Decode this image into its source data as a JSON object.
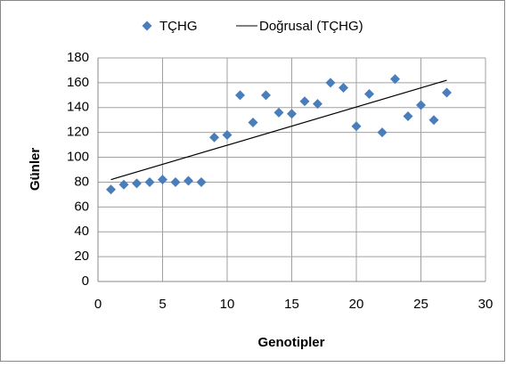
{
  "chart_data": {
    "type": "scatter",
    "x_label": "Genotipler",
    "y_label": "Günler",
    "xlim": [
      0,
      30
    ],
    "xticks": [
      0,
      5,
      10,
      15,
      20,
      25,
      30
    ],
    "ylim": [
      0,
      180
    ],
    "yticks": [
      0,
      20,
      40,
      60,
      80,
      100,
      120,
      140,
      160,
      180
    ],
    "grid": true,
    "legend": "top",
    "series": [
      {
        "name": "TÇHG",
        "color": "#4a7ebb",
        "style": "markers",
        "x": [
          1,
          2,
          3,
          4,
          5,
          6,
          7,
          8,
          9,
          10,
          11,
          12,
          13,
          14,
          15,
          16,
          17,
          18,
          19,
          20,
          21,
          22,
          23,
          24,
          25,
          26,
          27
        ],
        "values": [
          74,
          78,
          79,
          80,
          82,
          80,
          81,
          80,
          116,
          118,
          150,
          128,
          150,
          136,
          135,
          145,
          143,
          160,
          156,
          125,
          151,
          120,
          163,
          133,
          142,
          130,
          152
        ]
      },
      {
        "name": "Doğrusal (TÇHG)",
        "color": "#000000",
        "style": "line",
        "x": [
          1,
          27
        ],
        "values": [
          82,
          162
        ]
      }
    ]
  }
}
